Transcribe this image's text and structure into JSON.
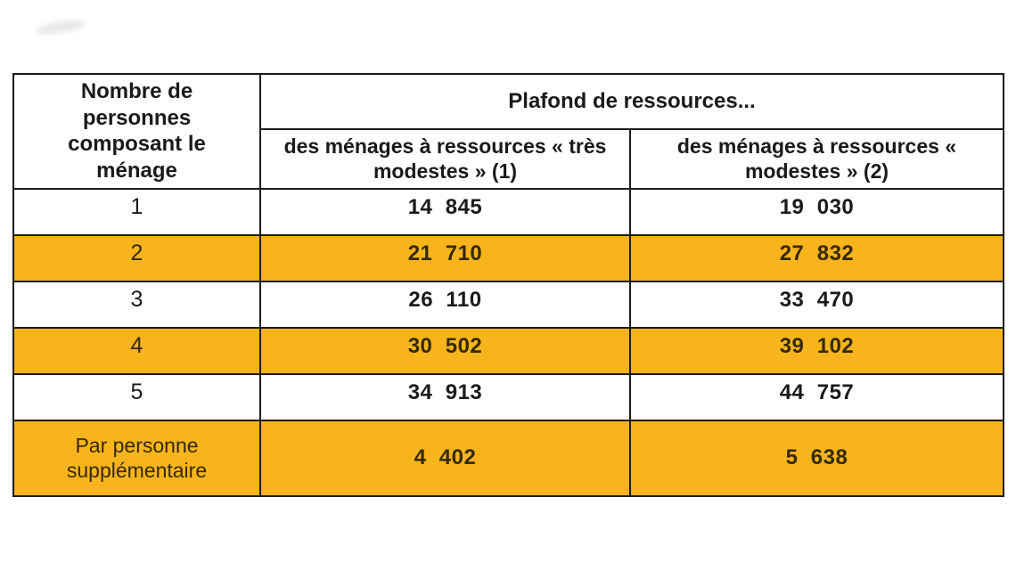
{
  "table": {
    "title_col_label": "Nombre de personnes composant le ménage",
    "span_header": "Plafond de ressources...",
    "sub_headers": {
      "tres_modestes": "des ménages à ressources « très modestes » (1)",
      "modestes": "des ménages à ressources « modestes » (2)"
    },
    "rows": [
      {
        "label": "1",
        "tres_modestes": "14  845",
        "modestes": "19  030",
        "highlight": false
      },
      {
        "label": "2",
        "tres_modestes": "21  710",
        "modestes": "27  832",
        "highlight": true
      },
      {
        "label": "3",
        "tres_modestes": "26  110",
        "modestes": "33  470",
        "highlight": false
      },
      {
        "label": "4",
        "tres_modestes": "30  502",
        "modestes": "39  102",
        "highlight": true
      },
      {
        "label": "5",
        "tres_modestes": "34  913",
        "modestes": "44  757",
        "highlight": false
      },
      {
        "label": "Par personne supplémentaire",
        "tres_modestes": "4  402",
        "modestes": "5  638",
        "highlight": true
      }
    ],
    "colors": {
      "highlight": "#F7B41C",
      "border": "#1d1c1a",
      "text": "#1a1a1a",
      "highlight_text": "#352a07"
    }
  }
}
